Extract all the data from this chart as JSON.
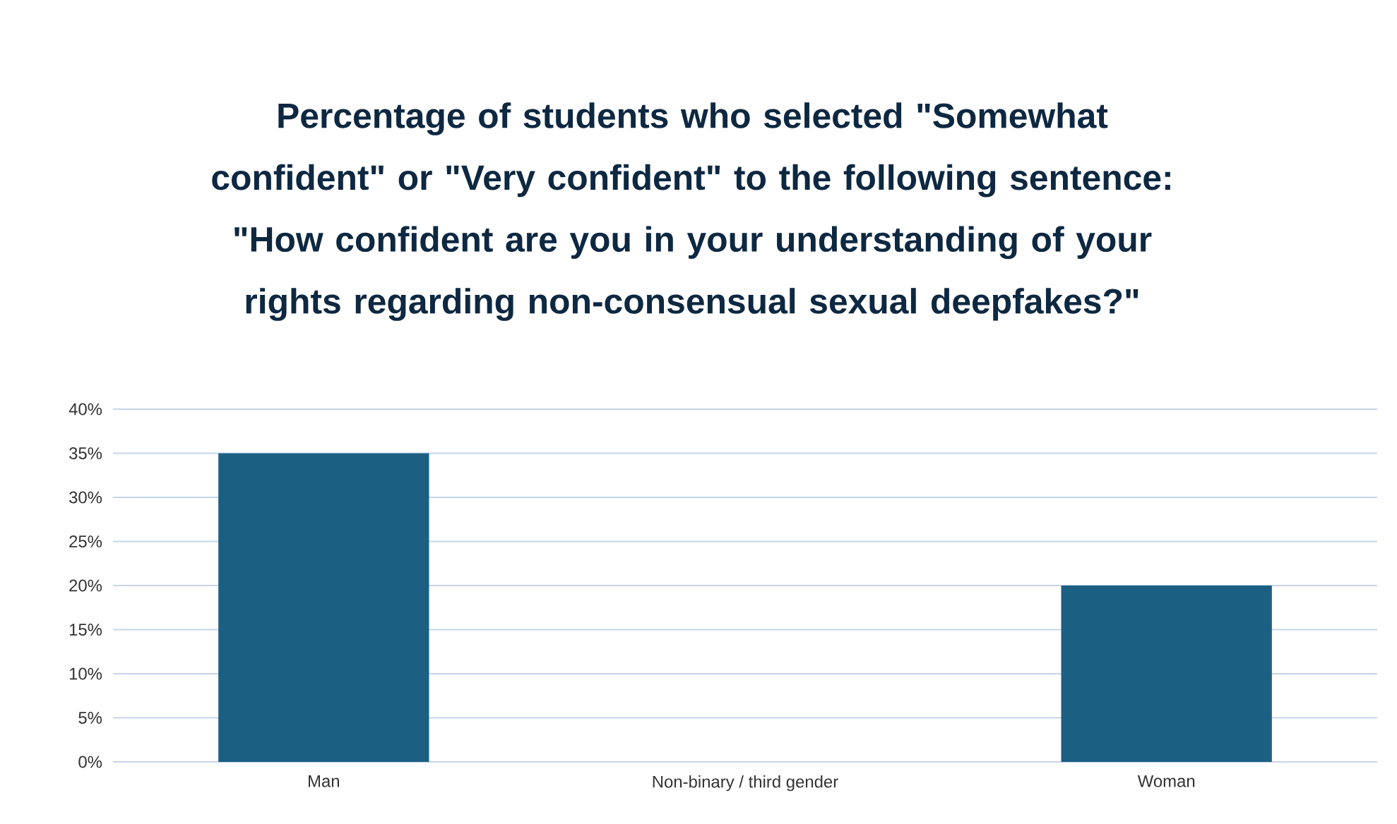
{
  "chart_data": {
    "type": "bar",
    "title": "Percentage of students who selected \"Somewhat confident\" or \"Very confident\" to the following sentence:  \"How confident are you in your understanding of your rights regarding non-consensual sexual deepfakes?\"",
    "categories": [
      "Man",
      "Non-binary / third gender",
      "Woman"
    ],
    "values": [
      35,
      0,
      20
    ],
    "color": "#1b6083",
    "ylim": [
      0,
      40
    ],
    "yticks": [
      {
        "value": 0,
        "label": "0%"
      },
      {
        "value": 5,
        "label": "5%"
      },
      {
        "value": 10,
        "label": "10%"
      },
      {
        "value": 15,
        "label": "15%"
      },
      {
        "value": 20,
        "label": "20%"
      },
      {
        "value": 25,
        "label": "25%"
      },
      {
        "value": 30,
        "label": "30%"
      },
      {
        "value": 35,
        "label": "35%"
      },
      {
        "value": 40,
        "label": "40%"
      }
    ],
    "grid": "y"
  }
}
